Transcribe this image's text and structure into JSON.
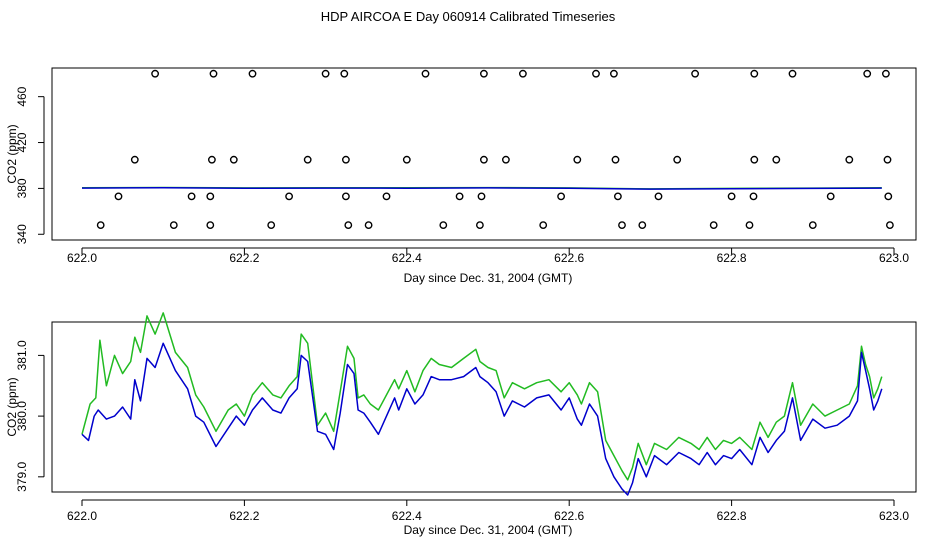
{
  "figure": {
    "title": "HDP AIRCOA E  Day 060914  Calibrated Timeseries"
  },
  "colors": {
    "green": "#22bb22",
    "blue": "#0000cc",
    "axis": "#000000",
    "background": "#ffffff"
  },
  "chart_data": [
    {
      "type": "scatter",
      "title": "",
      "xlabel": "Day since Dec. 31, 2004 (GMT)",
      "ylabel": "CO2 (ppm)",
      "xlim": [
        622.0,
        623.0
      ],
      "ylim": [
        335,
        485
      ],
      "xticks": [
        622.0,
        622.2,
        622.4,
        622.6,
        622.8,
        623.0
      ],
      "xtick_labels": [
        "622.0",
        "622.2",
        "622.4",
        "622.6",
        "622.8",
        "623.0"
      ],
      "yticks": [
        340,
        380,
        420,
        460
      ],
      "ytick_labels": [
        "340",
        "380",
        "420",
        "460"
      ],
      "grid": false,
      "legend": "none",
      "points": {
        "marker": "open-circle",
        "x": [
          622.09,
          622.162,
          622.21,
          622.3,
          622.323,
          622.423,
          622.495,
          622.543,
          622.633,
          622.655,
          622.755,
          622.828,
          622.875,
          622.967,
          622.99,
          622.065,
          622.16,
          622.187,
          622.278,
          622.325,
          622.4,
          622.495,
          622.522,
          622.61,
          622.657,
          622.733,
          622.828,
          622.855,
          622.945,
          622.992,
          622.045,
          622.135,
          622.158,
          622.255,
          622.325,
          622.375,
          622.465,
          622.492,
          622.59,
          622.66,
          622.71,
          622.8,
          622.827,
          622.922,
          622.993,
          622.023,
          622.113,
          622.158,
          622.233,
          622.328,
          622.353,
          622.445,
          622.49,
          622.568,
          622.665,
          622.69,
          622.778,
          622.822,
          622.9,
          622.995
        ],
        "y": [
          480,
          480,
          480,
          480,
          480,
          480,
          480,
          480,
          480,
          480,
          480,
          480,
          480,
          480,
          480,
          405,
          405,
          405,
          405,
          405,
          405,
          405,
          405,
          405,
          405,
          405,
          405,
          405,
          405,
          405,
          373,
          373,
          373,
          373,
          373,
          373,
          373,
          373,
          373,
          373,
          373,
          373,
          373,
          373,
          373,
          348,
          348,
          348,
          348,
          348,
          348,
          348,
          348,
          348,
          348,
          348,
          348,
          348,
          348,
          348
        ]
      },
      "series": [
        {
          "color": "#22bb22",
          "x": [
            622.0,
            622.1,
            622.2,
            622.3,
            622.4,
            622.5,
            622.6,
            622.7,
            622.8,
            622.9,
            622.985
          ],
          "y": [
            380.5,
            380.8,
            380.4,
            380.6,
            380.5,
            380.7,
            380.4,
            379.6,
            380.0,
            380.3,
            380.5
          ]
        },
        {
          "color": "#0000cc",
          "x": [
            622.0,
            622.1,
            622.2,
            622.3,
            622.4,
            622.5,
            622.6,
            622.7,
            622.8,
            622.9,
            622.985
          ],
          "y": [
            380.3,
            380.5,
            380.1,
            380.3,
            380.2,
            380.4,
            380.1,
            379.4,
            379.7,
            380.0,
            380.3
          ]
        }
      ]
    },
    {
      "type": "line",
      "title": "",
      "xlabel": "Day since Dec. 31, 2004 (GMT)",
      "ylabel": "CO2 (ppm)",
      "xlim": [
        622.0,
        623.0
      ],
      "ylim": [
        378.75,
        381.55
      ],
      "xticks": [
        622.0,
        622.2,
        622.4,
        622.6,
        622.8,
        623.0
      ],
      "xtick_labels": [
        "622.0",
        "622.2",
        "622.4",
        "622.6",
        "622.8",
        "623.0"
      ],
      "yticks": [
        379.0,
        380.0,
        381.0
      ],
      "ytick_labels": [
        "379.0",
        "380.0",
        "381.0"
      ],
      "grid": false,
      "legend": "none",
      "series": [
        {
          "color": "#22bb22",
          "x": [
            622.0,
            622.01,
            622.017,
            622.022,
            622.03,
            622.04,
            622.05,
            622.06,
            622.065,
            622.072,
            622.08,
            622.09,
            622.1,
            622.115,
            622.13,
            622.14,
            622.15,
            622.165,
            622.18,
            622.19,
            622.2,
            622.21,
            622.222,
            622.235,
            622.245,
            622.255,
            622.265,
            622.27,
            622.278,
            622.29,
            622.3,
            622.31,
            622.318,
            622.327,
            622.335,
            622.34,
            622.347,
            622.355,
            622.365,
            622.375,
            622.385,
            622.39,
            622.4,
            622.41,
            622.42,
            622.43,
            622.44,
            622.455,
            622.47,
            622.485,
            622.49,
            622.5,
            622.51,
            622.52,
            622.53,
            622.545,
            622.56,
            622.575,
            622.59,
            622.6,
            622.61,
            622.615,
            622.625,
            622.635,
            622.645,
            622.655,
            622.665,
            622.672,
            622.678,
            622.685,
            622.695,
            622.705,
            622.72,
            622.735,
            622.75,
            622.76,
            622.77,
            622.78,
            622.79,
            622.8,
            622.81,
            622.825,
            622.835,
            622.845,
            622.855,
            622.865,
            622.875,
            622.885,
            622.9,
            622.915,
            622.93,
            622.945,
            622.955,
            622.96,
            622.965,
            622.97,
            622.975,
            622.98,
            622.985
          ],
          "y": [
            379.7,
            380.2,
            380.3,
            381.25,
            380.5,
            381.0,
            380.7,
            380.9,
            381.3,
            381.05,
            381.65,
            381.35,
            381.7,
            381.05,
            380.8,
            380.35,
            380.15,
            379.75,
            380.1,
            380.2,
            380.0,
            380.35,
            380.55,
            380.35,
            380.3,
            380.5,
            380.65,
            381.35,
            381.2,
            379.85,
            380.05,
            379.75,
            380.4,
            381.15,
            380.95,
            380.3,
            380.35,
            380.2,
            380.1,
            380.35,
            380.6,
            380.45,
            380.75,
            380.4,
            380.75,
            380.95,
            380.85,
            380.8,
            380.95,
            381.1,
            380.9,
            380.8,
            380.75,
            380.3,
            380.55,
            380.45,
            380.55,
            380.6,
            380.4,
            380.55,
            380.35,
            380.2,
            380.55,
            380.4,
            379.6,
            379.35,
            379.1,
            378.95,
            379.15,
            379.55,
            379.2,
            379.55,
            379.45,
            379.65,
            379.55,
            379.45,
            379.65,
            379.45,
            379.6,
            379.55,
            379.65,
            379.45,
            379.9,
            379.65,
            379.9,
            380.0,
            380.55,
            379.85,
            380.2,
            380.0,
            380.1,
            380.2,
            380.5,
            381.15,
            380.85,
            380.65,
            380.3,
            380.45,
            380.65
          ]
        },
        {
          "color": "#0000cc",
          "x": [
            622.0,
            622.008,
            622.015,
            622.02,
            622.03,
            622.04,
            622.05,
            622.06,
            622.065,
            622.072,
            622.08,
            622.09,
            622.1,
            622.115,
            622.13,
            622.14,
            622.15,
            622.165,
            622.18,
            622.19,
            622.2,
            622.21,
            622.222,
            622.235,
            622.245,
            622.255,
            622.265,
            622.27,
            622.278,
            622.29,
            622.3,
            622.31,
            622.318,
            622.327,
            622.335,
            622.34,
            622.347,
            622.355,
            622.365,
            622.375,
            622.385,
            622.39,
            622.4,
            622.41,
            622.42,
            622.43,
            622.44,
            622.455,
            622.47,
            622.485,
            622.49,
            622.5,
            622.51,
            622.52,
            622.53,
            622.545,
            622.56,
            622.575,
            622.59,
            622.6,
            622.61,
            622.615,
            622.625,
            622.635,
            622.645,
            622.655,
            622.665,
            622.672,
            622.678,
            622.685,
            622.695,
            622.705,
            622.72,
            622.735,
            622.75,
            622.76,
            622.77,
            622.78,
            622.79,
            622.8,
            622.81,
            622.825,
            622.835,
            622.845,
            622.855,
            622.865,
            622.875,
            622.885,
            622.9,
            622.915,
            622.93,
            622.945,
            622.955,
            622.96,
            622.965,
            622.97,
            622.975,
            622.98,
            622.985
          ],
          "y": [
            379.7,
            379.6,
            380.0,
            380.1,
            379.95,
            380.0,
            380.15,
            379.95,
            380.6,
            380.25,
            380.95,
            380.8,
            381.2,
            380.75,
            380.45,
            380.0,
            379.9,
            379.5,
            379.8,
            380.0,
            379.85,
            380.1,
            380.3,
            380.1,
            380.05,
            380.3,
            380.45,
            381.0,
            380.9,
            379.75,
            379.7,
            379.45,
            380.05,
            380.85,
            380.7,
            380.1,
            380.05,
            379.9,
            379.7,
            380.0,
            380.3,
            380.1,
            380.45,
            380.2,
            380.35,
            380.65,
            380.6,
            380.6,
            380.65,
            380.8,
            380.65,
            380.55,
            380.4,
            380.0,
            380.25,
            380.15,
            380.3,
            380.35,
            380.1,
            380.3,
            379.95,
            379.85,
            380.2,
            380.0,
            379.3,
            379.0,
            378.8,
            378.7,
            378.9,
            379.3,
            379.0,
            379.35,
            379.2,
            379.4,
            379.3,
            379.2,
            379.4,
            379.2,
            379.35,
            379.3,
            379.45,
            379.2,
            379.65,
            379.4,
            379.6,
            379.75,
            380.3,
            379.6,
            379.95,
            379.8,
            379.85,
            380.0,
            380.25,
            381.05,
            380.75,
            380.45,
            380.1,
            380.25,
            380.45
          ]
        }
      ]
    }
  ]
}
